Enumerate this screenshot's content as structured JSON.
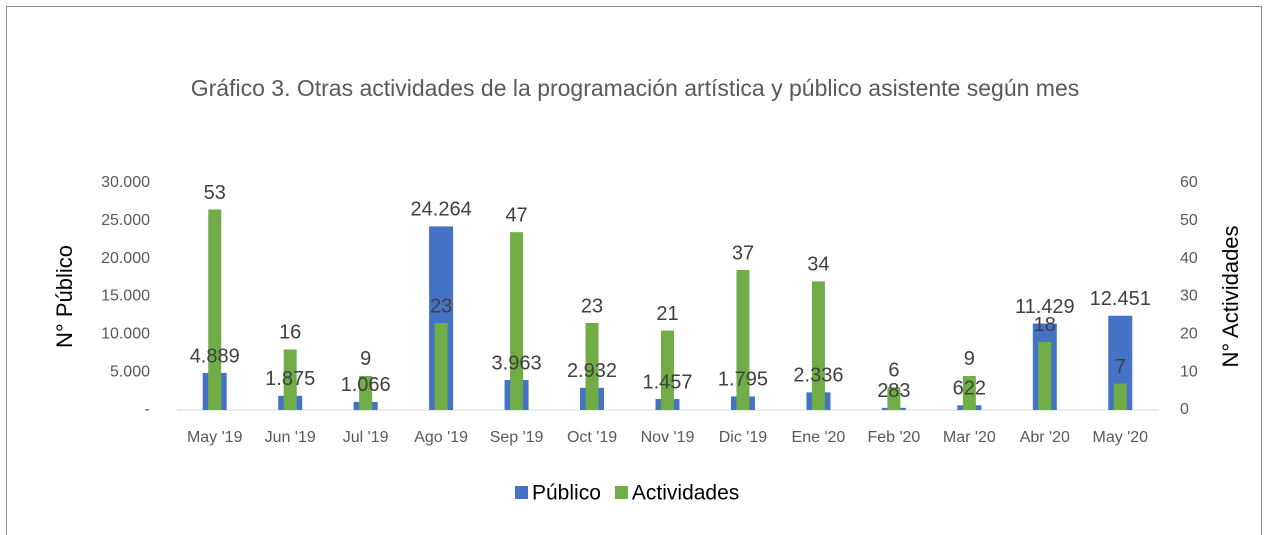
{
  "chart_data": {
    "type": "bar",
    "title": "Gráfico 3. Otras actividades de la programación artística y público asistente según mes",
    "categories": [
      "May '19",
      "Jun '19",
      "Jul '19",
      "Ago '19",
      "Sep '19",
      "Oct '19",
      "Nov '19",
      "Dic '19",
      "Ene '20",
      "Feb '20",
      "Mar '20",
      "Abr '20",
      "May '20"
    ],
    "series": [
      {
        "name": "Público",
        "color": "#4472c4",
        "axis": "y",
        "values": [
          4889,
          1875,
          1066,
          24264,
          3963,
          2932,
          1457,
          1795,
          2336,
          283,
          622,
          11429,
          12451
        ],
        "value_labels": [
          "4.889",
          "1.875",
          "1.066",
          "24.264",
          "3.963",
          "2.932",
          "1.457",
          "1.795",
          "2.336",
          "283",
          "622",
          "11.429",
          "12.451"
        ]
      },
      {
        "name": "Actividades",
        "color": "#70ad47",
        "axis": "y2",
        "values": [
          53,
          16,
          9,
          23,
          47,
          23,
          21,
          37,
          34,
          6,
          9,
          18,
          7
        ]
      }
    ],
    "ylabel": "N° Público",
    "y2label": "N° Actividades",
    "ylim": [
      0,
      30000
    ],
    "yticks": [
      {
        "value": 0,
        "label": "-"
      },
      {
        "value": 5000,
        "label": "5.000"
      },
      {
        "value": 10000,
        "label": "10.000"
      },
      {
        "value": 15000,
        "label": "15.000"
      },
      {
        "value": 20000,
        "label": "20.000"
      },
      {
        "value": 25000,
        "label": "25.000"
      },
      {
        "value": 30000,
        "label": "30.000"
      }
    ],
    "y2lim": [
      0,
      60
    ],
    "y2ticks": [
      0,
      10,
      20,
      30,
      40,
      50,
      60
    ],
    "legend": "bottom"
  }
}
